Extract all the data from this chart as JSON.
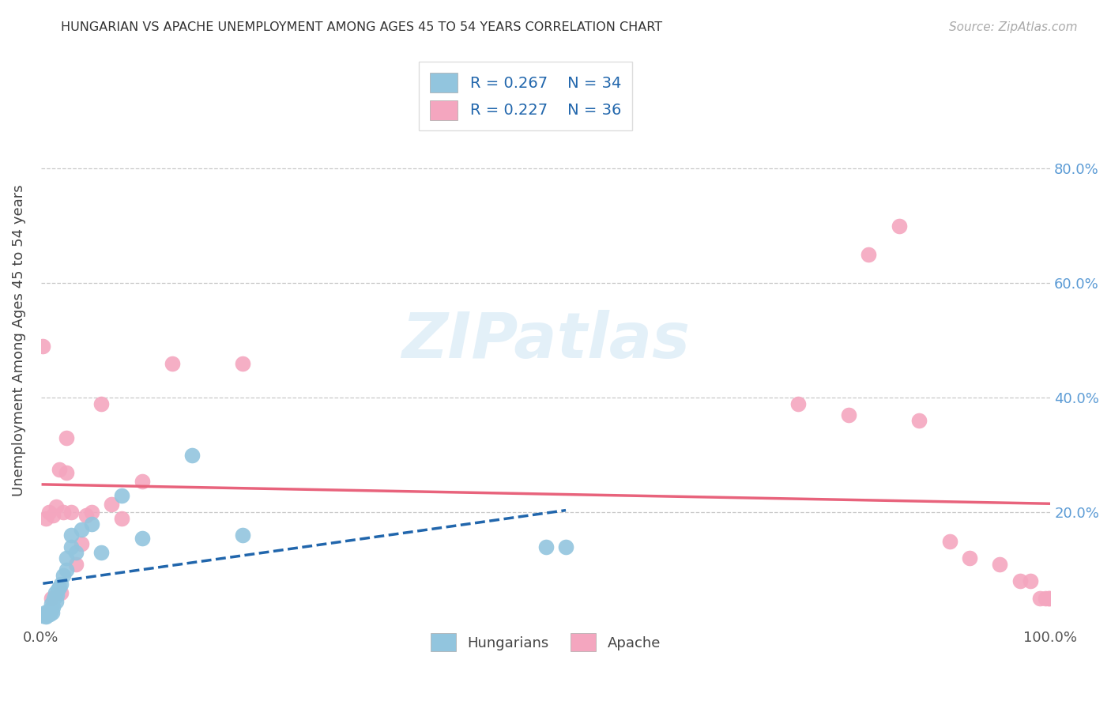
{
  "title": "HUNGARIAN VS APACHE UNEMPLOYMENT AMONG AGES 45 TO 54 YEARS CORRELATION CHART",
  "source": "Source: ZipAtlas.com",
  "ylabel": "Unemployment Among Ages 45 to 54 years",
  "watermark": "ZIPatlas",
  "hungarian_r": "R = 0.267",
  "hungarian_n": "N = 34",
  "apache_r": "R = 0.227",
  "apache_n": "N = 36",
  "hungarian_color": "#92c5de",
  "apache_color": "#f4a6bf",
  "trend_hungarian_color": "#2166ac",
  "trend_apache_color": "#e8637c",
  "legend_text_color": "#2166ac",
  "ytick_color": "#5b9bd5",
  "xlim": [
    0.0,
    1.0
  ],
  "ylim": [
    0.0,
    1.0
  ],
  "xtick_labels": [
    "0.0%",
    "",
    "",
    "",
    "",
    "",
    "",
    "",
    "",
    "",
    "100.0%"
  ],
  "xtick_vals": [
    0.0,
    0.1,
    0.2,
    0.3,
    0.4,
    0.5,
    0.6,
    0.7,
    0.8,
    0.9,
    1.0
  ],
  "ytick_labels": [
    "20.0%",
    "40.0%",
    "60.0%",
    "80.0%"
  ],
  "ytick_vals": [
    0.2,
    0.4,
    0.6,
    0.8
  ],
  "hungarian_x": [
    0.002,
    0.003,
    0.004,
    0.005,
    0.006,
    0.007,
    0.008,
    0.009,
    0.01,
    0.01,
    0.011,
    0.012,
    0.013,
    0.014,
    0.015,
    0.016,
    0.017,
    0.018,
    0.02,
    0.022,
    0.025,
    0.025,
    0.03,
    0.03,
    0.035,
    0.04,
    0.05,
    0.06,
    0.08,
    0.1,
    0.15,
    0.2,
    0.5,
    0.52
  ],
  "hungarian_y": [
    0.02,
    0.022,
    0.025,
    0.018,
    0.02,
    0.025,
    0.03,
    0.022,
    0.03,
    0.04,
    0.025,
    0.035,
    0.05,
    0.06,
    0.045,
    0.055,
    0.065,
    0.07,
    0.075,
    0.09,
    0.1,
    0.12,
    0.14,
    0.16,
    0.13,
    0.17,
    0.18,
    0.13,
    0.23,
    0.155,
    0.3,
    0.16,
    0.14,
    0.14
  ],
  "apache_x": [
    0.002,
    0.005,
    0.008,
    0.01,
    0.012,
    0.015,
    0.018,
    0.02,
    0.022,
    0.025,
    0.025,
    0.03,
    0.035,
    0.04,
    0.045,
    0.05,
    0.06,
    0.07,
    0.08,
    0.1,
    0.13,
    0.2,
    0.75,
    0.8,
    0.82,
    0.85,
    0.87,
    0.9,
    0.92,
    0.95,
    0.97,
    0.98,
    0.99,
    0.995,
    0.998,
    0.999
  ],
  "apache_y": [
    0.49,
    0.19,
    0.2,
    0.05,
    0.195,
    0.21,
    0.275,
    0.06,
    0.2,
    0.27,
    0.33,
    0.2,
    0.11,
    0.145,
    0.195,
    0.2,
    0.39,
    0.215,
    0.19,
    0.255,
    0.46,
    0.46,
    0.39,
    0.37,
    0.65,
    0.7,
    0.36,
    0.15,
    0.12,
    0.11,
    0.08,
    0.08,
    0.05,
    0.05,
    0.05,
    0.05
  ],
  "grid_color": "#c8c8c8",
  "background_color": "#ffffff"
}
